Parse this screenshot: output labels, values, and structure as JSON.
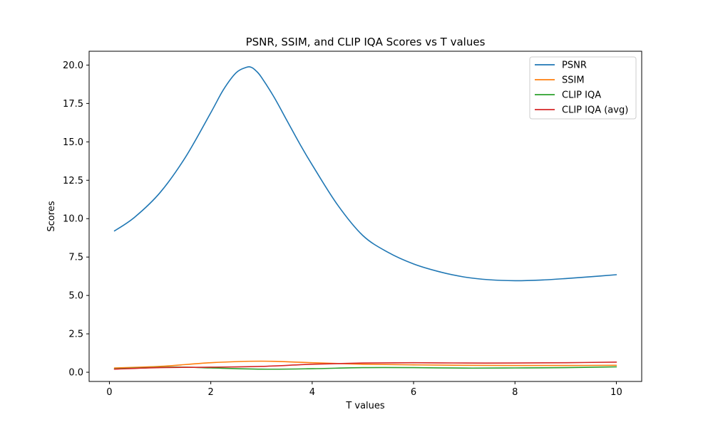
{
  "chart_data": {
    "type": "line",
    "title": "PSNR, SSIM, and CLIP IQA Scores vs T values",
    "xlabel": "T values",
    "ylabel": "Scores",
    "xlim": [
      -0.4,
      10.5
    ],
    "ylim": [
      -0.6,
      20.9
    ],
    "x_ticks": [
      0,
      2,
      4,
      6,
      8,
      10
    ],
    "x_tick_labels": [
      "0",
      "2",
      "4",
      "6",
      "8",
      "10"
    ],
    "y_ticks": [
      0,
      2.5,
      5,
      7.5,
      10,
      12.5,
      15,
      17.5,
      20
    ],
    "y_tick_labels": [
      "0.0",
      "2.5",
      "5.0",
      "7.5",
      "10.0",
      "12.5",
      "15.0",
      "17.5",
      "20.0"
    ],
    "grid": false,
    "legend_position": "top-right",
    "series": [
      {
        "name": "PSNR",
        "color": "#1f77b4",
        "x": [
          0.1,
          0.5,
          1.0,
          1.5,
          2.0,
          2.25,
          2.5,
          2.7,
          2.8,
          2.9,
          3.0,
          3.25,
          3.5,
          3.75,
          4.0,
          4.5,
          5.0,
          5.5,
          6.0,
          6.5,
          7.0,
          7.5,
          8.0,
          8.5,
          9.0,
          9.5,
          10.0
        ],
        "y": [
          9.2,
          10.1,
          11.7,
          14.0,
          16.9,
          18.4,
          19.5,
          19.85,
          19.85,
          19.6,
          19.2,
          17.9,
          16.4,
          14.9,
          13.5,
          10.9,
          8.9,
          7.8,
          7.05,
          6.55,
          6.2,
          6.02,
          5.96,
          6.0,
          6.1,
          6.22,
          6.35
        ]
      },
      {
        "name": "SSIM",
        "color": "#ff7f0e",
        "x": [
          0.1,
          1.0,
          2.0,
          3.0,
          4.0,
          5.0,
          6.0,
          7.0,
          8.0,
          9.0,
          10.0
        ],
        "y": [
          0.28,
          0.38,
          0.62,
          0.72,
          0.62,
          0.52,
          0.48,
          0.45,
          0.44,
          0.44,
          0.45
        ]
      },
      {
        "name": "CLIP IQA",
        "color": "#2ca02c",
        "x": [
          0.1,
          1.0,
          1.5,
          2.0,
          3.0,
          4.0,
          5.0,
          6.0,
          7.0,
          8.0,
          9.0,
          10.0
        ],
        "y": [
          0.22,
          0.32,
          0.33,
          0.28,
          0.2,
          0.23,
          0.3,
          0.3,
          0.27,
          0.28,
          0.3,
          0.35
        ]
      },
      {
        "name": "CLIP IQA (avg)",
        "color": "#d62728",
        "x": [
          0.1,
          1.0,
          2.0,
          3.0,
          4.0,
          5.0,
          6.0,
          7.0,
          8.0,
          9.0,
          10.0
        ],
        "y": [
          0.2,
          0.3,
          0.33,
          0.38,
          0.52,
          0.6,
          0.62,
          0.6,
          0.6,
          0.62,
          0.66
        ]
      }
    ]
  }
}
